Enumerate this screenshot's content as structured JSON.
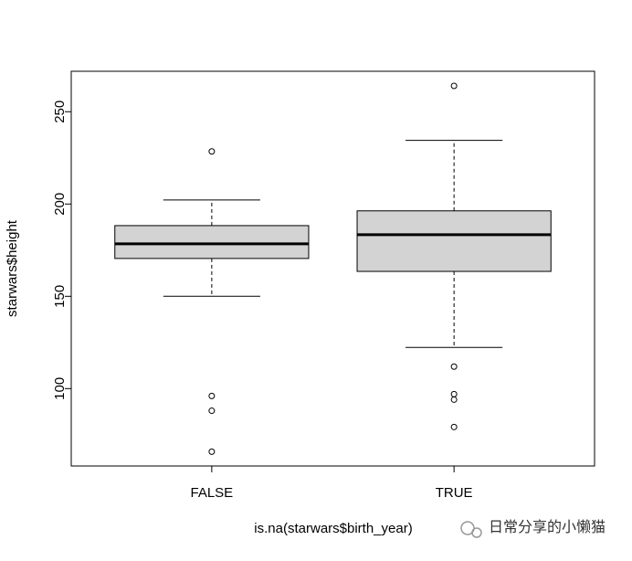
{
  "chart_data": {
    "type": "boxplot",
    "x_label": "is.na(starwars$birth_year)",
    "y_label": "starwars$height",
    "categories": [
      "FALSE",
      "TRUE"
    ],
    "boxes": [
      {
        "min": 150,
        "q1": 170.5,
        "median": 178.4,
        "q3": 188.3,
        "max": 202.2,
        "outliers": [
          228.5,
          96,
          88,
          65.8
        ]
      },
      {
        "min": 122.3,
        "q1": 163.5,
        "median": 183.4,
        "q3": 196.3,
        "max": 234.5,
        "outliers": [
          264,
          111.9,
          97,
          94,
          79.2
        ]
      }
    ],
    "color": "#d3d3d3",
    "ylim": [
      58.08,
      271.92
    ],
    "yticks": [
      100,
      150,
      200,
      250
    ],
    "xlim": [
      0.42,
      2.58
    ]
  },
  "watermark": "日常分享的小懒猫"
}
